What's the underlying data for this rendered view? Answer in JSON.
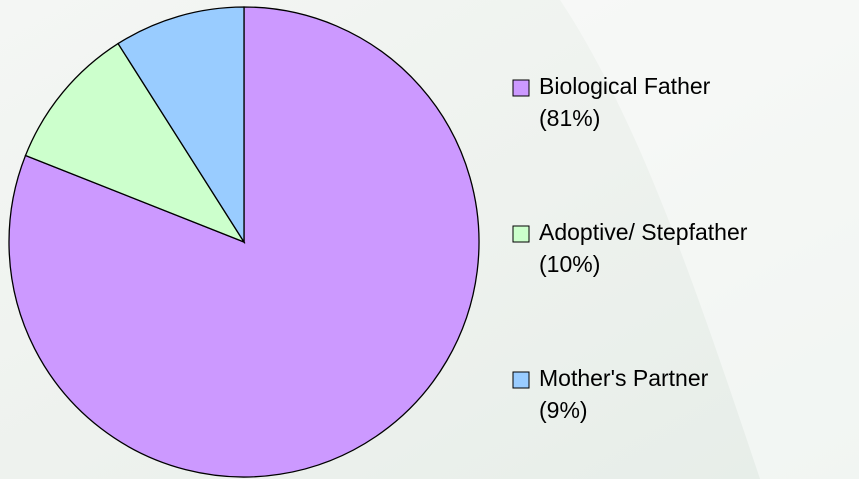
{
  "chart_data": {
    "type": "pie",
    "categories": [
      "Biological Father",
      "Adoptive/ Stepfather",
      "Mother's Partner"
    ],
    "values": [
      81,
      10,
      9
    ],
    "value_labels": [
      "(81%)",
      "(10%)",
      "(9%)"
    ],
    "colors": [
      "#cc99ff",
      "#ccffcc",
      "#99ccff"
    ],
    "legend": "right"
  }
}
